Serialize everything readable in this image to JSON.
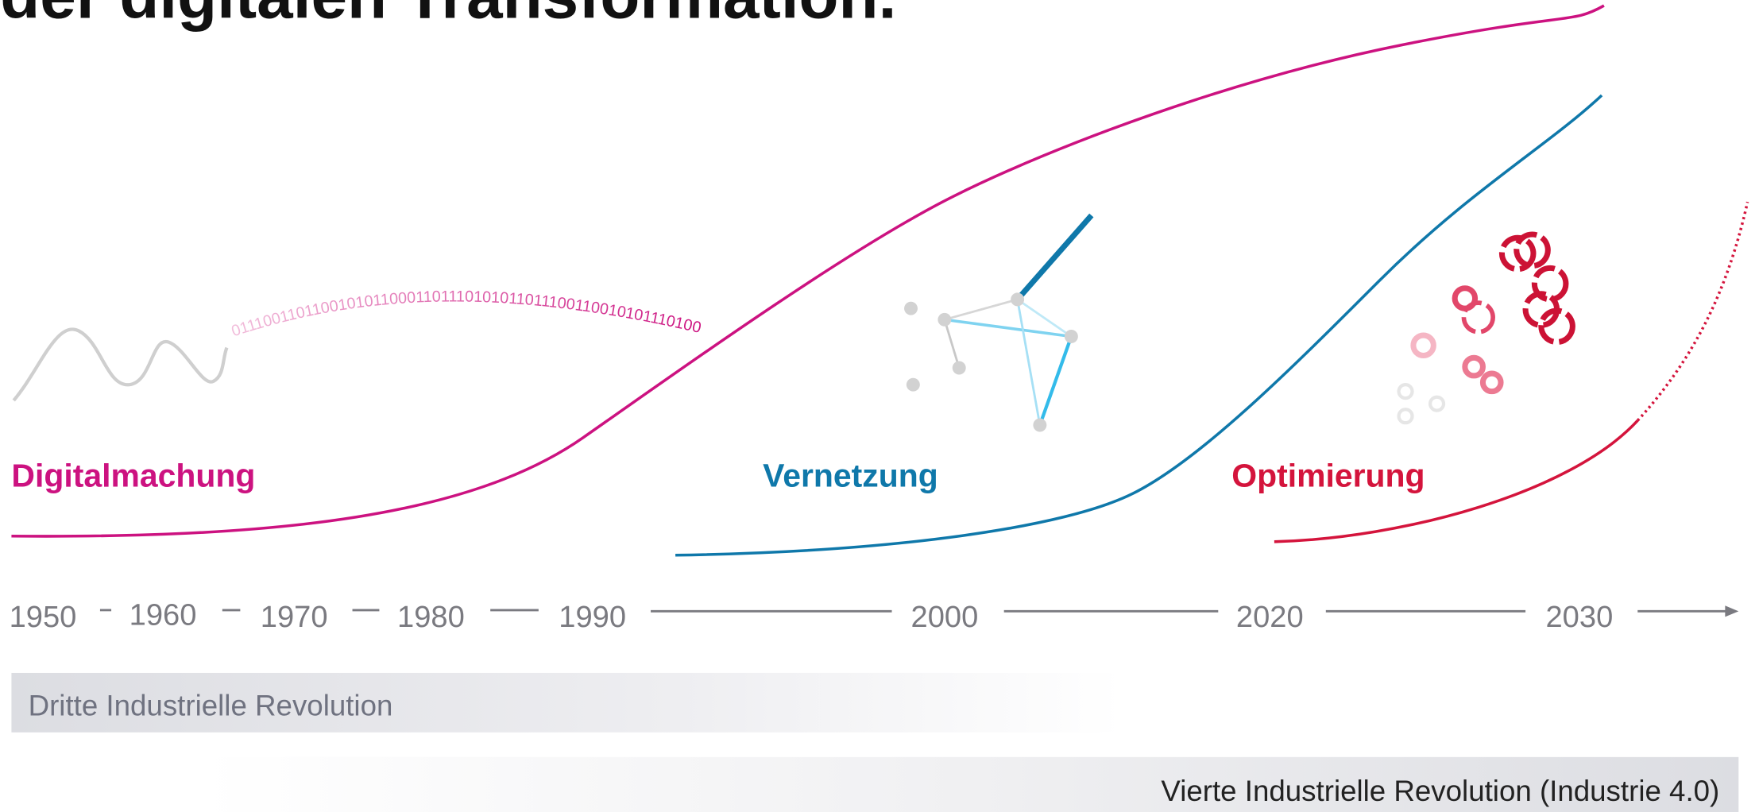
{
  "header": {
    "title": "der digitalen Transformation."
  },
  "binary": "01110011011001010110001101110101011011100110010101110100",
  "phases": [
    {
      "label": "Digitalmachung"
    },
    {
      "label": "Vernetzung"
    },
    {
      "label": "Optimierung"
    }
  ],
  "timeline": {
    "years": [
      "1950",
      "1960",
      "1970",
      "1980",
      "1990",
      "2000",
      "2020",
      "2030"
    ]
  },
  "revolutions": [
    {
      "label": "Dritte Industrielle Revolution"
    },
    {
      "label": "Vierte Industrielle Revolution (Industrie 4.0)"
    }
  ]
}
